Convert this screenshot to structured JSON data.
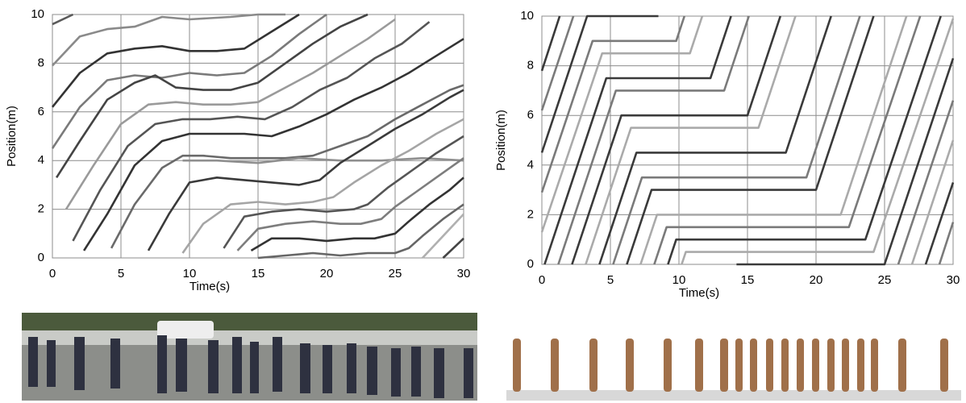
{
  "chart_data": [
    {
      "type": "line",
      "xlabel": "Time(s)",
      "ylabel": "Position(m)",
      "xlim": [
        0,
        30
      ],
      "ylim": [
        0,
        10
      ],
      "xticks": [
        0,
        5,
        10,
        15,
        20,
        25,
        30
      ],
      "yticks": [
        0,
        2,
        4,
        6,
        8,
        10
      ],
      "grid": true,
      "series": [
        {
          "color": "#5a5a5a",
          "x": [
            0,
            1.5
          ],
          "values": [
            9.6,
            10
          ]
        },
        {
          "color": "#8a8a8a",
          "x": [
            0,
            2,
            4,
            6,
            8,
            10,
            13,
            15,
            17
          ],
          "values": [
            7.9,
            9.1,
            9.4,
            9.5,
            9.9,
            9.8,
            9.9,
            10,
            10
          ]
        },
        {
          "color": "#333333",
          "x": [
            0,
            2,
            4,
            6,
            8,
            10,
            12,
            14,
            16,
            18
          ],
          "values": [
            6.2,
            7.6,
            8.4,
            8.6,
            8.7,
            8.5,
            8.5,
            8.6,
            9.3,
            10
          ]
        },
        {
          "color": "#7a7a7a",
          "x": [
            0,
            2,
            4,
            6,
            8,
            10,
            12,
            14,
            16,
            18,
            20
          ],
          "values": [
            4.5,
            6.2,
            7.3,
            7.5,
            7.4,
            7.6,
            7.5,
            7.6,
            8.3,
            9.2,
            10
          ]
        },
        {
          "color": "#444444",
          "x": [
            0.3,
            2,
            4,
            6,
            7.5,
            9,
            11,
            13,
            15,
            17,
            19,
            21,
            23
          ],
          "values": [
            3.3,
            4.8,
            6.5,
            7.2,
            7.5,
            7.0,
            6.9,
            6.9,
            7.2,
            8.0,
            8.8,
            9.5,
            10
          ]
        },
        {
          "color": "#9a9a9a",
          "x": [
            1,
            3,
            5,
            7,
            9,
            11,
            13,
            15,
            17,
            19,
            21,
            23,
            25
          ],
          "values": [
            2,
            3.8,
            5.5,
            6.3,
            6.4,
            6.3,
            6.3,
            6.4,
            7.0,
            7.6,
            8.3,
            9.0,
            9.8
          ]
        },
        {
          "color": "#555555",
          "x": [
            1.5,
            3.5,
            5.5,
            7.5,
            9.5,
            11.5,
            13.5,
            15.5,
            17.5,
            19.5,
            21.5,
            23.5,
            25.5,
            27.5
          ],
          "values": [
            0.7,
            2.8,
            4.6,
            5.5,
            5.7,
            5.7,
            5.8,
            5.7,
            6.2,
            6.9,
            7.4,
            8.2,
            8.8,
            9.7
          ]
        },
        {
          "color": "#333333",
          "x": [
            2.3,
            4,
            6,
            8,
            10,
            12,
            14,
            16,
            18,
            20,
            22,
            24,
            26,
            28,
            30
          ],
          "values": [
            0.3,
            1.8,
            3.8,
            4.8,
            5.1,
            5.1,
            5.1,
            5.0,
            5.4,
            5.9,
            6.5,
            7.0,
            7.6,
            8.3,
            9.0
          ]
        },
        {
          "color": "#6a6a6a",
          "x": [
            4.3,
            6,
            8,
            9.5,
            11,
            13,
            15,
            17,
            19,
            21,
            23,
            25,
            27,
            29,
            30
          ],
          "values": [
            0.4,
            2.2,
            3.7,
            4.2,
            4.2,
            4.1,
            4.1,
            4.1,
            4.2,
            4.6,
            5.0,
            5.7,
            6.3,
            6.9,
            7.1
          ]
        },
        {
          "color": "#8f8f8f",
          "x": [
            9.5,
            12,
            15,
            18,
            21,
            24,
            27,
            30
          ],
          "values": [
            4.0,
            4.0,
            3.9,
            4.1,
            4.0,
            4.0,
            4.1,
            4.0
          ]
        },
        {
          "color": "#3a3a3a",
          "x": [
            7,
            8.5,
            10,
            12,
            14,
            16,
            18,
            19.5,
            21,
            23,
            25,
            27,
            29,
            30
          ],
          "values": [
            0.3,
            1.8,
            3.1,
            3.3,
            3.2,
            3.1,
            3.0,
            3.2,
            3.9,
            4.6,
            5.3,
            5.9,
            6.6,
            6.9
          ]
        },
        {
          "color": "#a5a5a5",
          "x": [
            9.5,
            11,
            13,
            15,
            17,
            19,
            20.5,
            22,
            24,
            26,
            28,
            30
          ],
          "values": [
            0.2,
            1.4,
            2.2,
            2.3,
            2.2,
            2.3,
            2.5,
            3.1,
            3.8,
            4.4,
            5.1,
            5.7
          ]
        },
        {
          "color": "#555555",
          "x": [
            12.5,
            14,
            16,
            18,
            20,
            22,
            23,
            24.5,
            26,
            28,
            30
          ],
          "values": [
            0.4,
            1.7,
            1.9,
            2.0,
            1.9,
            2.0,
            2.2,
            2.9,
            3.5,
            4.3,
            5.0
          ]
        },
        {
          "color": "#7d7d7d",
          "x": [
            13.5,
            15,
            17,
            19,
            21,
            22.5,
            24,
            25,
            26.5,
            28,
            30
          ],
          "values": [
            0.3,
            1.2,
            1.4,
            1.5,
            1.4,
            1.4,
            1.6,
            2.1,
            2.7,
            3.3,
            4.1
          ]
        },
        {
          "color": "#333333",
          "x": [
            14.5,
            16,
            18,
            20,
            22,
            23.5,
            25,
            26,
            27.5,
            29,
            30
          ],
          "values": [
            0.3,
            0.8,
            0.8,
            0.7,
            0.8,
            0.8,
            1.0,
            1.5,
            2.2,
            2.8,
            3.3
          ]
        },
        {
          "color": "#666666",
          "x": [
            15,
            17,
            19,
            21,
            23,
            25,
            26,
            27,
            28.5,
            30
          ],
          "values": [
            0,
            0.1,
            0.2,
            0.1,
            0.2,
            0.2,
            0.4,
            0.9,
            1.6,
            2.2
          ]
        },
        {
          "color": "#b0b0b0",
          "x": [
            27,
            28.5,
            30
          ],
          "values": [
            0,
            0.9,
            1.8
          ]
        },
        {
          "color": "#444444",
          "x": [
            28.5,
            30
          ],
          "values": [
            0,
            0.8
          ]
        }
      ]
    },
    {
      "type": "line",
      "xlabel": "Time(s)",
      "ylabel": "Position(m)",
      "xlim": [
        0,
        30
      ],
      "ylim": [
        0,
        10
      ],
      "xticks": [
        0,
        5,
        10,
        15,
        20,
        25,
        30
      ],
      "yticks": [
        0,
        2,
        4,
        6,
        8,
        10
      ],
      "grid": true,
      "series": [
        {
          "color": "#3a3a3a",
          "x": [
            0,
            1.3
          ],
          "values": [
            7.8,
            10
          ]
        },
        {
          "color": "#7a7a7a",
          "x": [
            0,
            2.3
          ],
          "values": [
            6.2,
            10
          ]
        },
        {
          "color": "#3a3a3a",
          "x": [
            0,
            3.3,
            8.5
          ],
          "values": [
            4.5,
            10,
            10
          ]
        },
        {
          "color": "#7a7a7a",
          "x": [
            0,
            3.7,
            9.8,
            10.4
          ],
          "values": [
            2.9,
            9,
            9,
            10
          ]
        },
        {
          "color": "#aaaaaa",
          "x": [
            0,
            4.4,
            10.8,
            11.7
          ],
          "values": [
            1.3,
            8.5,
            8.5,
            10
          ]
        },
        {
          "color": "#3a3a3a",
          "x": [
            0.2,
            4.7,
            12.3,
            13.8
          ],
          "values": [
            0,
            7.5,
            7.5,
            10
          ]
        },
        {
          "color": "#7a7a7a",
          "x": [
            1.2,
            5.4,
            13.3,
            15.1
          ],
          "values": [
            0,
            7,
            7,
            10
          ]
        },
        {
          "color": "#3a3a3a",
          "x": [
            2.2,
            5.8,
            15,
            17.4
          ],
          "values": [
            0,
            6,
            6,
            10
          ]
        },
        {
          "color": "#aaaaaa",
          "x": [
            3.2,
            6.5,
            15.8,
            18.5
          ],
          "values": [
            0,
            5.5,
            5.5,
            10
          ]
        },
        {
          "color": "#3a3a3a",
          "x": [
            4.2,
            6.9,
            17.8,
            21.1
          ],
          "values": [
            0,
            4.5,
            4.5,
            10
          ]
        },
        {
          "color": "#7a7a7a",
          "x": [
            5.2,
            7.3,
            19.3,
            23.2
          ],
          "values": [
            0,
            3.5,
            3.5,
            10
          ]
        },
        {
          "color": "#3a3a3a",
          "x": [
            6.2,
            8.0,
            20,
            24.2
          ],
          "values": [
            0,
            3,
            3,
            10
          ]
        },
        {
          "color": "#aaaaaa",
          "x": [
            7.2,
            8.4,
            21.8,
            26.6
          ],
          "values": [
            0,
            2,
            2,
            10
          ]
        },
        {
          "color": "#7a7a7a",
          "x": [
            8.2,
            9.1,
            22.4,
            27.6
          ],
          "values": [
            0,
            1.5,
            1.5,
            10
          ]
        },
        {
          "color": "#3a3a3a",
          "x": [
            9.2,
            9.8,
            23.6,
            29.1
          ],
          "values": [
            0,
            1,
            1,
            10
          ]
        },
        {
          "color": "#aaaaaa",
          "x": [
            10.2,
            10.5,
            24.2,
            30
          ],
          "values": [
            0,
            0.5,
            0.5,
            9.9
          ]
        },
        {
          "color": "#3a3a3a",
          "x": [
            14.2,
            25,
            30
          ],
          "values": [
            0,
            0,
            8.3
          ]
        },
        {
          "color": "#7a7a7a",
          "x": [
            26,
            30
          ],
          "values": [
            0,
            6.6
          ]
        },
        {
          "color": "#aaaaaa",
          "x": [
            27,
            30
          ],
          "values": [
            0,
            5
          ]
        },
        {
          "color": "#3a3a3a",
          "x": [
            28,
            30
          ],
          "values": [
            0,
            3.3
          ]
        },
        {
          "color": "#7a7a7a",
          "x": [
            29,
            30
          ],
          "values": [
            0,
            1.7
          ]
        }
      ]
    }
  ]
}
